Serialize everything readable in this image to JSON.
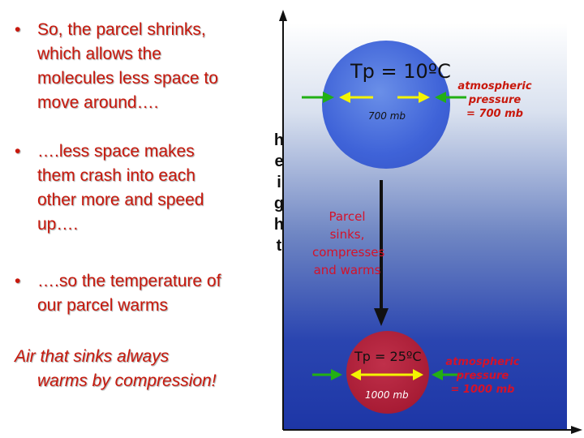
{
  "bullets": [
    {
      "marker": "•",
      "lines": [
        "So, the parcel shrinks,",
        "which allows the",
        "molecules less space to",
        "move around…."
      ]
    },
    {
      "marker": "•",
      "lines": [
        "….less space makes",
        "them crash into each",
        "other more and speed",
        "up…."
      ]
    },
    {
      "marker": "•",
      "lines": [
        "….so the temperature of",
        "our parcel warms"
      ]
    }
  ],
  "conclusion": {
    "lines": [
      "Air that sinks always",
      "warms by compression!"
    ]
  },
  "diagram": {
    "axis_label_letters": [
      "h",
      "e",
      "i",
      "g",
      "h",
      "t"
    ],
    "top_parcel": {
      "temp": "Tp = 10ºC",
      "pressure": "700 mb",
      "color": "#3f63d8"
    },
    "bottom_parcel": {
      "temp": "Tp = 25ºC",
      "pressure": "1000 mb",
      "color": "#a81c35"
    },
    "atm_top": {
      "lines": [
        "atmospheric pressure",
        "= 700 mb"
      ]
    },
    "atm_bottom": {
      "lines": [
        "atmospheric pressure",
        "= 1000 mb"
      ]
    },
    "sink_label": {
      "lines": [
        "Parcel sinks,",
        "compresses",
        "and warms"
      ]
    },
    "arrow_green": "#22b014",
    "arrow_yellow": "#f4f400"
  }
}
